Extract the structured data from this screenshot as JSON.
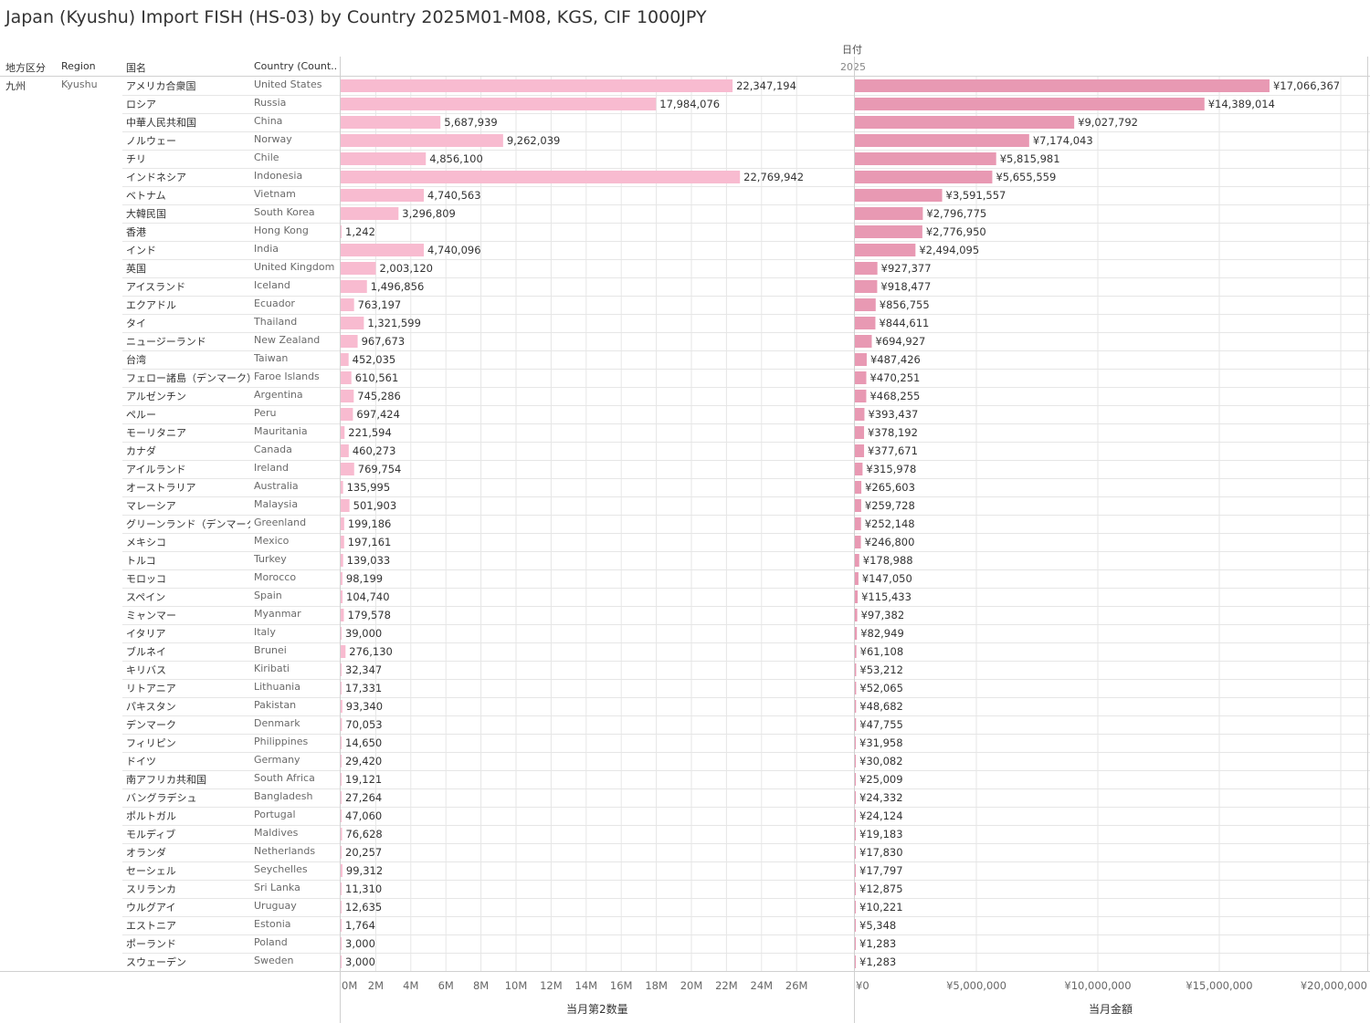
{
  "title": "Japan (Kyushu) Import FISH (HS-03) by Country 2025M01-M08, KGS, CIF 1000JPY",
  "column_headers": {
    "division": "地方区分",
    "region": "Region",
    "country_jp": "国名",
    "country_en": "Country (Count.."
  },
  "date_header": "日付",
  "year_label": "2025",
  "group": {
    "division": "九州",
    "region": "Kyushu"
  },
  "colors": {
    "qty_bar": "#f8bbd0",
    "amt_bar": "#e899b3",
    "grid": "#e6e6e6",
    "divider": "#d0d0d0"
  },
  "chart_data": {
    "type": "bar",
    "orientation": "horizontal",
    "title": "Japan (Kyushu) Import FISH (HS-03) by Country 2025M01-M08, KGS, CIF 1000JPY",
    "categories_jp": [
      "アメリカ合衆国",
      "ロシア",
      "中華人民共和国",
      "ノルウェー",
      "チリ",
      "インドネシア",
      "ベトナム",
      "大韓民国",
      "香港",
      "インド",
      "英国",
      "アイスランド",
      "エクアドル",
      "タイ",
      "ニュージーランド",
      "台湾",
      "フェロー諸島（デンマーク）",
      "アルゼンチン",
      "ペルー",
      "モーリタニア",
      "カナダ",
      "アイルランド",
      "オーストラリア",
      "マレーシア",
      "グリーンランド（デンマーク）",
      "メキシコ",
      "トルコ",
      "モロッコ",
      "スペイン",
      "ミャンマー",
      "イタリア",
      "ブルネイ",
      "キリバス",
      "リトアニア",
      "パキスタン",
      "デンマーク",
      "フィリピン",
      "ドイツ",
      "南アフリカ共和国",
      "バングラデシュ",
      "ポルトガル",
      "モルディブ",
      "オランダ",
      "セーシェル",
      "スリランカ",
      "ウルグアイ",
      "エストニア",
      "ポーランド",
      "スウェーデン"
    ],
    "categories": [
      "United States",
      "Russia",
      "China",
      "Norway",
      "Chile",
      "Indonesia",
      "Vietnam",
      "South Korea",
      "Hong Kong",
      "India",
      "United Kingdom",
      "Iceland",
      "Ecuador",
      "Thailand",
      "New Zealand",
      "Taiwan",
      "Faroe Islands",
      "Argentina",
      "Peru",
      "Mauritania",
      "Canada",
      "Ireland",
      "Australia",
      "Malaysia",
      "Greenland",
      "Mexico",
      "Turkey",
      "Morocco",
      "Spain",
      "Myanmar",
      "Italy",
      "Brunei",
      "Kiribati",
      "Lithuania",
      "Pakistan",
      "Denmark",
      "Philippines",
      "Germany",
      "South Africa",
      "Bangladesh",
      "Portugal",
      "Maldives",
      "Netherlands",
      "Seychelles",
      "Sri Lanka",
      "Uruguay",
      "Estonia",
      "Poland",
      "Sweden"
    ],
    "series": [
      {
        "name": "当月第2数量",
        "values": [
          22347194,
          17984076,
          5687939,
          9262039,
          4856100,
          22769942,
          4740563,
          3296809,
          1242,
          4740096,
          2003120,
          1496856,
          763197,
          1321599,
          967673,
          452035,
          610561,
          745286,
          697424,
          221594,
          460273,
          769754,
          135995,
          501903,
          199186,
          197161,
          139033,
          98199,
          104740,
          179578,
          39000,
          276130,
          32347,
          17331,
          93340,
          70053,
          14650,
          29420,
          19121,
          27264,
          47060,
          76628,
          20257,
          99312,
          11310,
          12635,
          1764,
          3000,
          3000
        ],
        "labels": [
          "22,347,194",
          "17,984,076",
          "5,687,939",
          "9,262,039",
          "4,856,100",
          "22,769,942",
          "4,740,563",
          "3,296,809",
          "1,242",
          "4,740,096",
          "2,003,120",
          "1,496,856",
          "763,197",
          "1,321,599",
          "967,673",
          "452,035",
          "610,561",
          "745,286",
          "697,424",
          "221,594",
          "460,273",
          "769,754",
          "135,995",
          "501,903",
          "199,186",
          "197,161",
          "139,033",
          "98,199",
          "104,740",
          "179,578",
          "39,000",
          "276,130",
          "32,347",
          "17,331",
          "93,340",
          "70,053",
          "14,650",
          "29,420",
          "19,121",
          "27,264",
          "47,060",
          "76,628",
          "20,257",
          "99,312",
          "11,310",
          "12,635",
          "1,764",
          "3,000",
          "3,000"
        ],
        "axis_title": "当月第2数量",
        "xlim": [
          0,
          27000000
        ],
        "ticks": [
          0,
          2000000,
          4000000,
          6000000,
          8000000,
          10000000,
          12000000,
          14000000,
          16000000,
          18000000,
          20000000,
          22000000,
          24000000,
          26000000
        ],
        "tick_labels": [
          "0M",
          "2M",
          "4M",
          "6M",
          "8M",
          "10M",
          "12M",
          "14M",
          "16M",
          "18M",
          "20M",
          "22M",
          "24M",
          "26M"
        ]
      },
      {
        "name": "当月金額",
        "values": [
          17066367,
          14389014,
          9027792,
          7174043,
          5815981,
          5655559,
          3591557,
          2796775,
          2776950,
          2494095,
          927377,
          918477,
          856755,
          844611,
          694927,
          487426,
          470251,
          468255,
          393437,
          378192,
          377671,
          315978,
          265603,
          259728,
          252148,
          246800,
          178988,
          147050,
          115433,
          97382,
          82949,
          61108,
          53212,
          52065,
          48682,
          47755,
          31958,
          30082,
          25009,
          24332,
          24124,
          19183,
          17830,
          17797,
          12875,
          10221,
          5348,
          1283,
          1283
        ],
        "labels": [
          "¥17,066,367",
          "¥14,389,014",
          "¥9,027,792",
          "¥7,174,043",
          "¥5,815,981",
          "¥5,655,559",
          "¥3,591,557",
          "¥2,796,775",
          "¥2,776,950",
          "¥2,494,095",
          "¥927,377",
          "¥918,477",
          "¥856,755",
          "¥844,611",
          "¥694,927",
          "¥487,426",
          "¥470,251",
          "¥468,255",
          "¥393,437",
          "¥378,192",
          "¥377,671",
          "¥315,978",
          "¥265,603",
          "¥259,728",
          "¥252,148",
          "¥246,800",
          "¥178,988",
          "¥147,050",
          "¥115,433",
          "¥97,382",
          "¥82,949",
          "¥61,108",
          "¥53,212",
          "¥52,065",
          "¥48,682",
          "¥47,755",
          "¥31,958",
          "¥30,082",
          "¥25,009",
          "¥24,332",
          "¥24,124",
          "¥19,183",
          "¥17,830",
          "¥17,797",
          "¥12,875",
          "¥10,221",
          "¥5,348",
          "¥1,283",
          "¥1,283"
        ],
        "axis_title": "当月金額",
        "xlim": [
          0,
          21000000
        ],
        "ticks": [
          0,
          5000000,
          10000000,
          15000000,
          20000000
        ],
        "tick_labels": [
          "¥0",
          "¥5,000,000",
          "¥10,000,000",
          "¥15,000,000",
          "¥20,000,000"
        ]
      }
    ]
  }
}
